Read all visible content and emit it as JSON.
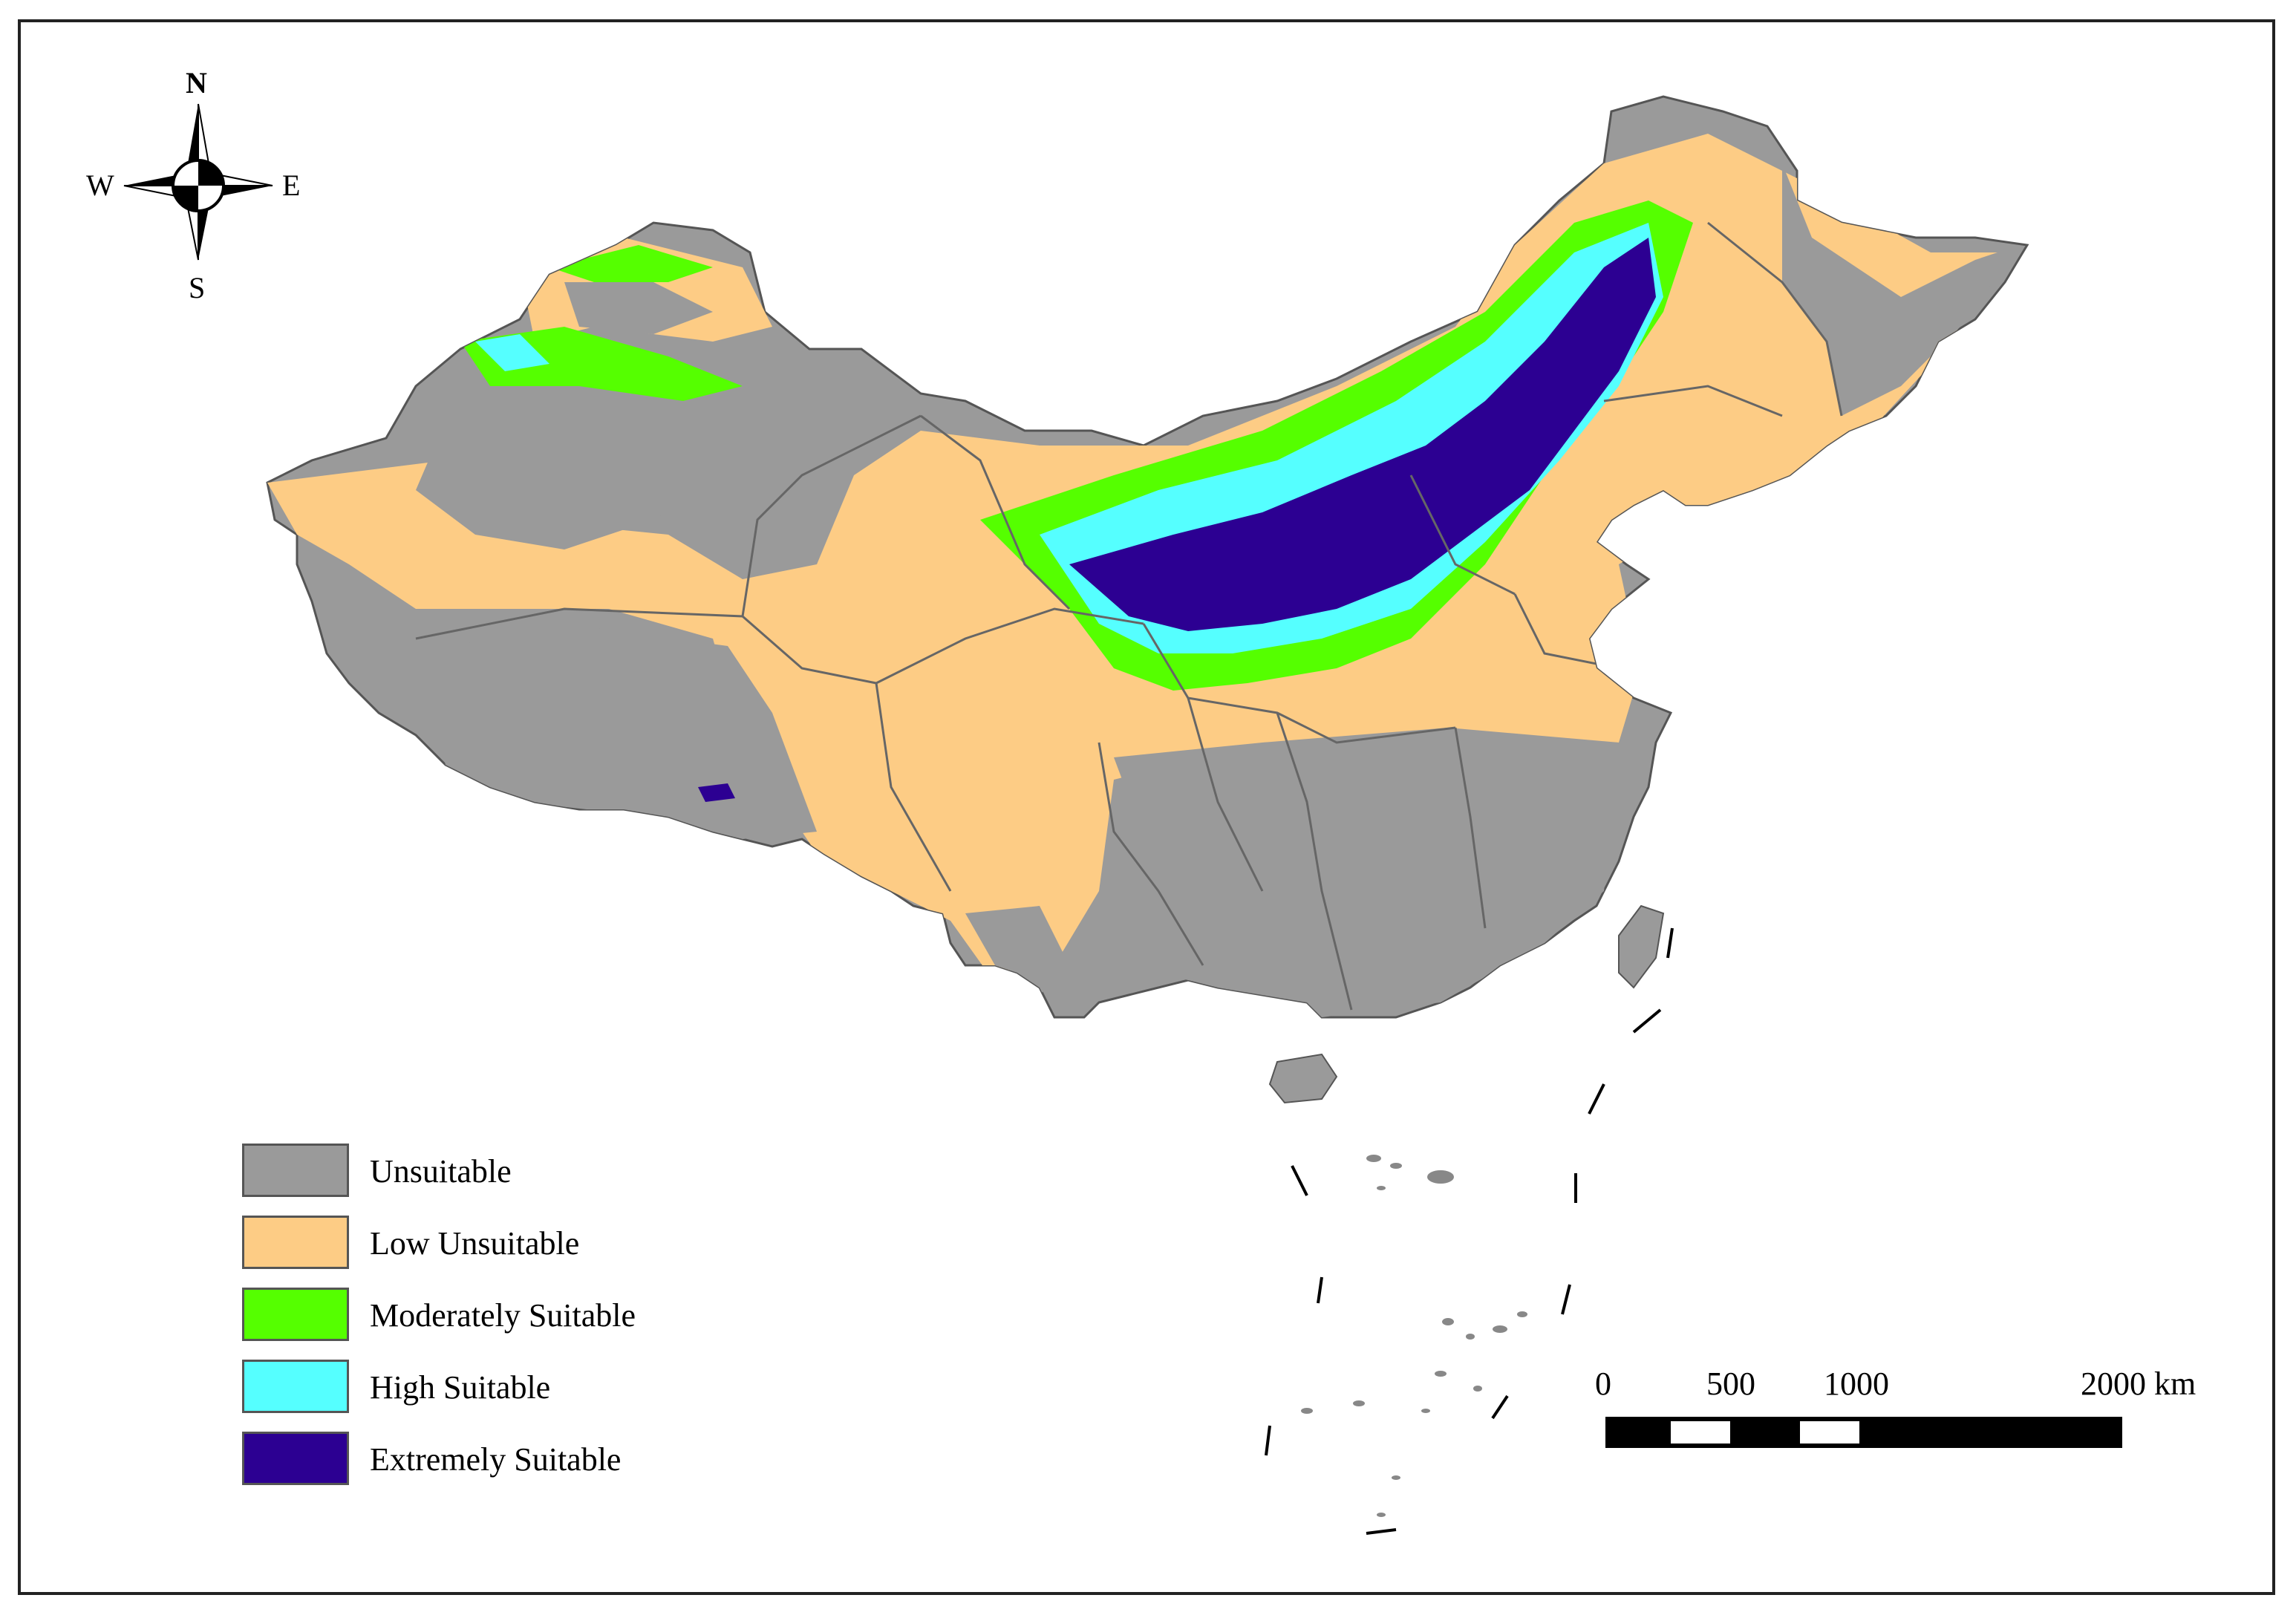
{
  "compass": {
    "north": "N",
    "south": "S",
    "east": "E",
    "west": "W",
    "icon": "compass-rose-icon"
  },
  "legend": {
    "items": [
      {
        "label": "Unsuitable",
        "color": "#9a9a9a"
      },
      {
        "label": "Low Unsuitable",
        "color": "#fdcc85"
      },
      {
        "label": "Moderately Suitable",
        "color": "#55ff00"
      },
      {
        "label": "High Suitable",
        "color": "#55ffff"
      },
      {
        "label": "Extremely Suitable",
        "color": "#2c0092"
      }
    ]
  },
  "scale_bar": {
    "labels": [
      "0",
      "500",
      "1000",
      "2000 km"
    ],
    "unit": "km"
  },
  "colors": {
    "boundary": "#555555",
    "frame": "#222222"
  }
}
